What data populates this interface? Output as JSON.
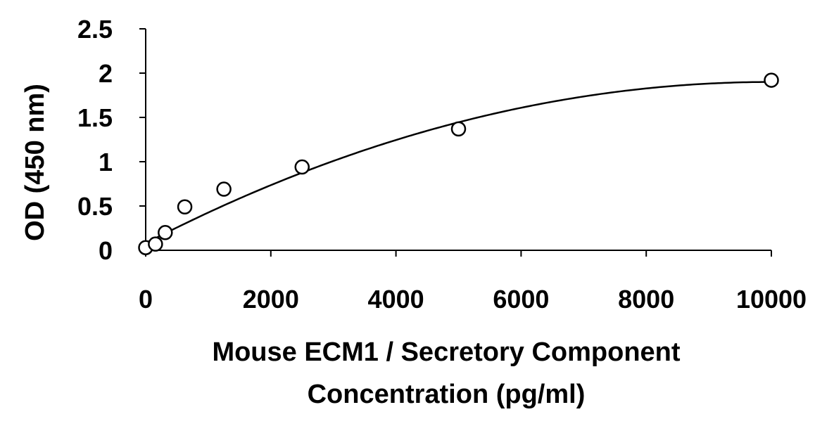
{
  "chart_data": {
    "type": "scatter",
    "title": "",
    "xlabel_lines": [
      "Mouse ECM1 / Secretory Component",
      "Concentration (pg/ml)"
    ],
    "ylabel": "OD (450 nm)",
    "xlim": [
      0,
      10000
    ],
    "ylim": [
      0,
      2.5
    ],
    "x_ticks": [
      0,
      2000,
      4000,
      6000,
      8000,
      10000
    ],
    "x_tick_labels": [
      "0",
      "2000",
      "4000",
      "6000",
      "8000",
      "10000"
    ],
    "y_ticks": [
      0,
      0.5,
      1,
      1.5,
      2,
      2.5
    ],
    "y_tick_labels": [
      "0",
      "0.5",
      "1",
      "1.5",
      "2",
      "2.5"
    ],
    "grid": false,
    "legend": "none",
    "series": [
      {
        "marker": "open-circle",
        "x": [
          0,
          156.25,
          312.5,
          625,
          1250,
          2500,
          5000,
          10000
        ],
        "y": [
          0.03,
          0.07,
          0.2,
          0.49,
          0.69,
          0.94,
          1.37,
          1.92
        ]
      }
    ],
    "fit_curve": {
      "kind": "polynomial",
      "coefficients": [
        0.08,
        0.000364,
        -1.82e-08
      ],
      "color": "#000000"
    },
    "colors": {
      "axis": "#000000",
      "marker_stroke": "#000000",
      "marker_fill": "#ffffff"
    }
  }
}
